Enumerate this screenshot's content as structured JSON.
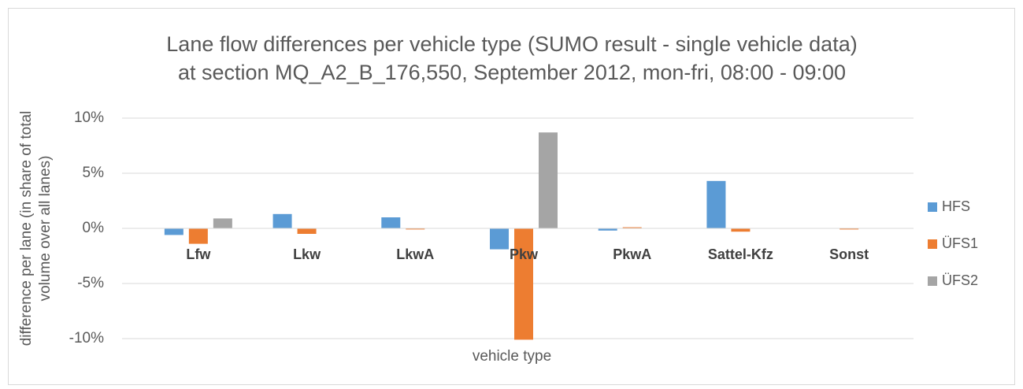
{
  "chart_data": {
    "type": "bar",
    "title": [
      "Lane flow differences per vehicle type (SUMO result - single vehicle data)",
      "at section MQ_A2_B_176,550, September 2012, mon-fri, 08:00 - 09:00"
    ],
    "xlabel": "vehicle type",
    "ylabel": [
      "difference per lane (in share of total",
      "volume over all lanes)"
    ],
    "categories": [
      "Lfw",
      "Lkw",
      "LkwA",
      "Pkw",
      "PkwA",
      "Sattel-Kfz",
      "Sonst"
    ],
    "series": [
      {
        "name": "HFS",
        "color": "#5b9bd5",
        "values": [
          -0.6,
          1.3,
          1.0,
          -1.9,
          -0.2,
          4.3,
          0
        ]
      },
      {
        "name": "ÜFS1",
        "color": "#ed7d31",
        "values": [
          -1.4,
          -0.5,
          -0.1,
          -10.1,
          0.1,
          -0.3,
          -0.1
        ]
      },
      {
        "name": "ÜFS2",
        "color": "#a5a5a5",
        "values": [
          0.9,
          0,
          0,
          8.7,
          0,
          0,
          0
        ]
      }
    ],
    "ylim": [
      -10,
      10
    ],
    "yticks": [
      {
        "value": -10,
        "label": "-10%"
      },
      {
        "value": -5,
        "label": "-5%"
      },
      {
        "value": 0,
        "label": "0%"
      },
      {
        "value": 5,
        "label": "5%"
      },
      {
        "value": 10,
        "label": "10%"
      }
    ],
    "grid": true,
    "legend": "right"
  }
}
